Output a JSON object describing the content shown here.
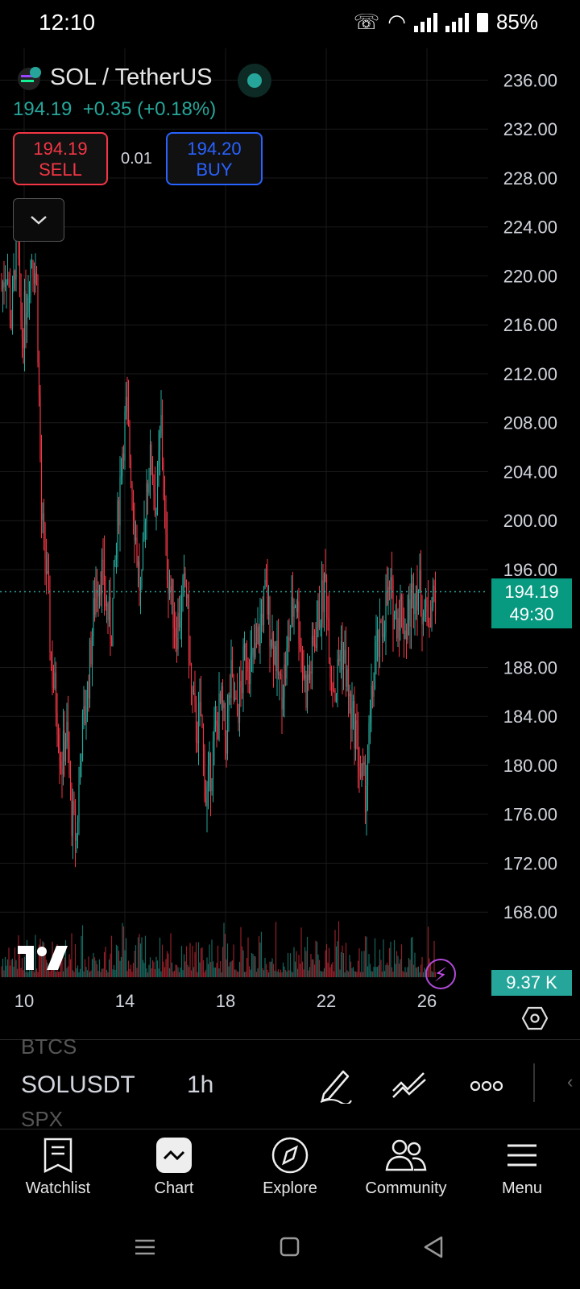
{
  "status_bar": {
    "time": "12:10",
    "battery": "85%"
  },
  "header": {
    "symbol_title": "SOL / TetherUS",
    "price": "194.19",
    "change": "+0.35 (+0.18%)",
    "sell_price": "194.19",
    "sell_label": "SELL",
    "spread": "0.01",
    "buy_price": "194.20",
    "buy_label": "BUY"
  },
  "chart_data": {
    "type": "line",
    "y_ticks": [
      "236.00",
      "232.00",
      "228.00",
      "224.00",
      "220.00",
      "216.00",
      "212.00",
      "208.00",
      "204.00",
      "200.00",
      "196.00",
      "188.00",
      "184.00",
      "180.00",
      "176.00",
      "172.00",
      "168.00"
    ],
    "x_ticks": [
      "10",
      "14",
      "18",
      "22",
      "26"
    ],
    "ylim": [
      164,
      236.5
    ],
    "close_approx": [
      219,
      221,
      216,
      224,
      215,
      218,
      222,
      220,
      200,
      196,
      188,
      185,
      180,
      183,
      176,
      174,
      182,
      185,
      190,
      195,
      196,
      193,
      191,
      198,
      205,
      209,
      204,
      198,
      193,
      203,
      205,
      201,
      208,
      197,
      194,
      191,
      193,
      195,
      186,
      183,
      184,
      177,
      180,
      183,
      185,
      182,
      187,
      184,
      186,
      190,
      188,
      189,
      192,
      194,
      191,
      189,
      186,
      188,
      192,
      194,
      190,
      186,
      188,
      191,
      193,
      195,
      188,
      186,
      190,
      188,
      184,
      183,
      179,
      178,
      184,
      189,
      190,
      193,
      194,
      192,
      193,
      191,
      193,
      195,
      194,
      192,
      193,
      194
    ],
    "volume_label": "9.37 K",
    "last_price_tag": {
      "price": "194.19",
      "countdown": "49:30"
    }
  },
  "toolbar": {
    "ghost_above": "BTCS",
    "symbol": "SOLUSDT",
    "interval": "1h",
    "ghost_below": "SPX"
  },
  "nav": {
    "watchlist": "Watchlist",
    "chart": "Chart",
    "explore": "Explore",
    "community": "Community",
    "menu": "Menu"
  },
  "colors": {
    "up": "#26a69a",
    "down": "#f23645",
    "buy": "#2962ff",
    "accent": "#089981"
  }
}
